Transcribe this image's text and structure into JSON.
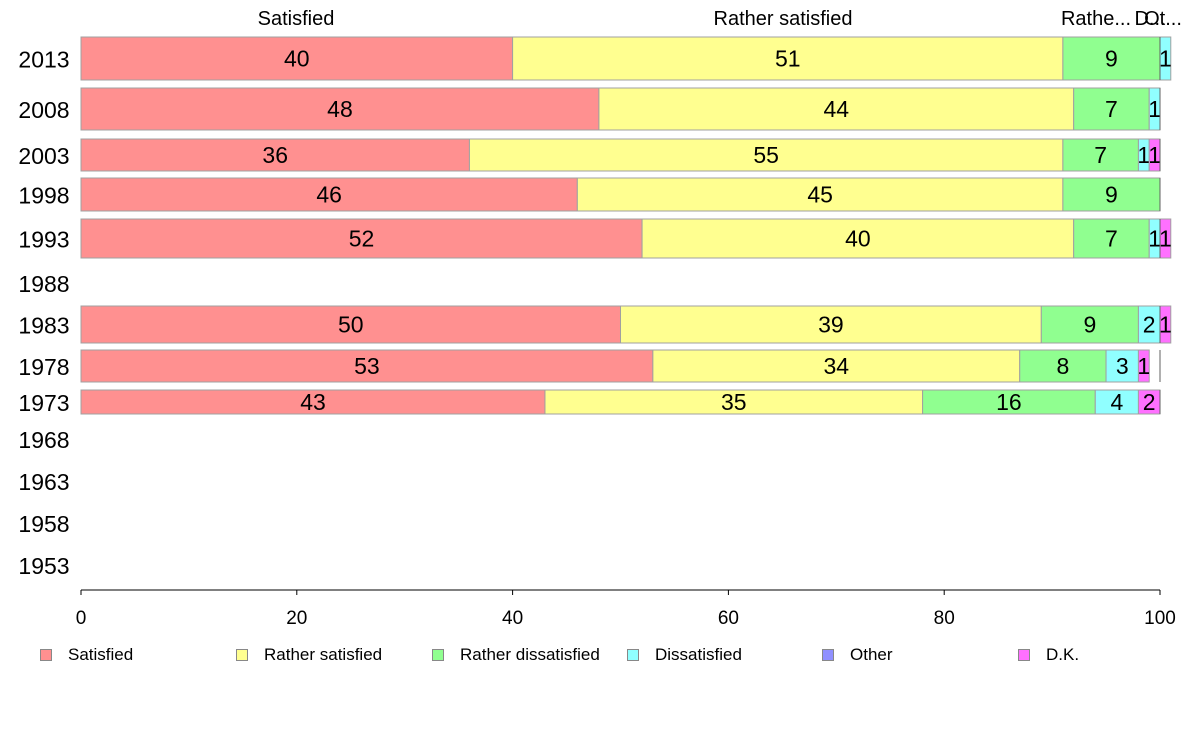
{
  "chart_data": {
    "type": "bar",
    "orientation": "horizontal",
    "stacked": true,
    "categories": [
      "2013",
      "2008",
      "2003",
      "1998",
      "1993",
      "1988",
      "1983",
      "1978",
      "1973",
      "1968",
      "1963",
      "1958",
      "1953"
    ],
    "series": [
      {
        "name": "Satisfied",
        "color": "#ff9090",
        "values": [
          40,
          48,
          36,
          46,
          52,
          null,
          50,
          53,
          43,
          null,
          null,
          null,
          null
        ]
      },
      {
        "name": "Rather satisfied",
        "color": "#ffff90",
        "values": [
          51,
          44,
          55,
          45,
          40,
          null,
          39,
          34,
          35,
          null,
          null,
          null,
          null
        ]
      },
      {
        "name": "Rather dissatisfied",
        "color": "#90ff90",
        "values": [
          9,
          7,
          7,
          9,
          7,
          null,
          9,
          8,
          16,
          null,
          null,
          null,
          null
        ]
      },
      {
        "name": "Dissatisfied",
        "color": "#90ffff",
        "values": [
          1,
          1,
          1,
          0,
          1,
          null,
          2,
          3,
          4,
          null,
          null,
          null,
          null
        ]
      },
      {
        "name": "Other",
        "color": "#9090ff",
        "values": [
          0,
          0,
          0,
          0,
          0,
          null,
          0,
          0,
          0,
          null,
          null,
          null,
          null
        ]
      },
      {
        "name": "D.K.",
        "color": "#ff70ff",
        "values": [
          0,
          0,
          1,
          0,
          1,
          null,
          1,
          1,
          2,
          null,
          null,
          null,
          null
        ]
      }
    ],
    "header_labels": [
      "Satisfied",
      "Rather satisfied",
      "Rathe...",
      "D...",
      "Ot..."
    ],
    "xlim": [
      0,
      100
    ],
    "xticks": [
      0,
      20,
      40,
      60,
      80,
      100
    ],
    "xlabel": "",
    "ylabel": "",
    "grid": false,
    "legend_position": "bottom"
  }
}
